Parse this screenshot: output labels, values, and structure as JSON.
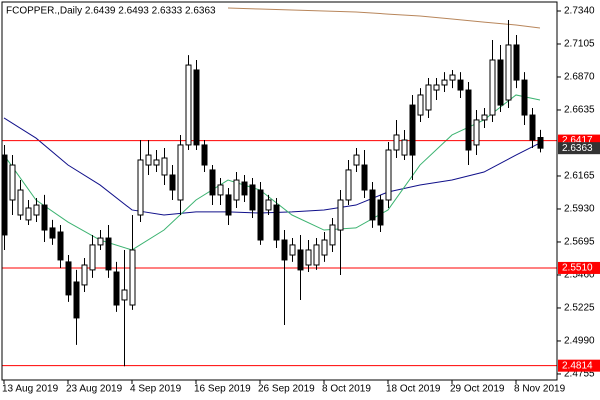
{
  "chart_data": {
    "type": "candlestick",
    "title": "FCOPPER.,Daily  2.6439 2.6493 2.6333 2.6363",
    "categories": [
      "13 Aug 2019",
      null,
      null,
      null,
      null,
      null,
      null,
      null,
      "23 Aug 2019",
      null,
      null,
      null,
      null,
      null,
      null,
      null,
      "4 Sep 2019",
      null,
      null,
      null,
      null,
      null,
      null,
      null,
      "16 Sep 2019",
      null,
      null,
      null,
      null,
      null,
      null,
      null,
      "26 Sep 2019",
      null,
      null,
      null,
      null,
      null,
      null,
      null,
      "8 Oct 2019",
      null,
      null,
      null,
      null,
      null,
      null,
      null,
      "18 Oct 2019",
      null,
      null,
      null,
      null,
      null,
      null,
      null,
      "29 Oct 2019",
      null,
      null,
      null,
      null,
      null,
      null,
      null,
      "8 Nov 2019",
      null,
      null,
      null
    ],
    "open": [
      2.6314,
      2.5994,
      2.5887,
      2.5852,
      2.5887,
      2.5958,
      2.5795,
      2.5766,
      2.5553,
      2.541,
      2.5389,
      2.5496,
      2.5674,
      2.5723,
      2.5481,
      2.5282,
      2.5246,
      2.5887,
      2.6243,
      2.6243,
      2.6172,
      2.6172,
      2.5994,
      2.6386,
      2.692,
      2.6386,
      2.6208,
      2.603,
      2.603,
      2.5994,
      2.6122,
      2.6101,
      2.6065,
      2.5923,
      2.5958,
      2.5709,
      2.5602,
      2.5638,
      2.5531,
      2.5531,
      2.5602,
      2.5674,
      2.578,
      2.5994,
      2.6243,
      2.6243,
      2.6065,
      2.5994,
      2.5994,
      2.635,
      2.6314,
      2.667,
      2.6599,
      2.6635,
      2.6777,
      2.6813,
      2.6848,
      2.6848,
      2.6777,
      2.6386,
      2.6564,
      2.6599,
      2.6991,
      2.6706,
      2.7098,
      2.6848,
      2.6599,
      2.6439
    ],
    "high": [
      2.6386,
      2.6314,
      2.6136,
      2.5994,
      2.6008,
      2.603,
      2.5852,
      2.5816,
      2.5602,
      2.5496,
      2.5581,
      2.5745,
      2.578,
      2.5816,
      2.5553,
      2.5638,
      2.5887,
      2.6421,
      2.6421,
      2.635,
      2.6364,
      2.6243,
      2.6457,
      2.7026,
      2.6991,
      2.6421,
      2.6243,
      2.6151,
      2.6079,
      2.6193,
      2.6172,
      2.6151,
      2.6122,
      2.603,
      2.6008,
      2.578,
      2.5723,
      2.5745,
      2.5709,
      2.5723,
      2.5766,
      2.5866,
      2.6065,
      2.6279,
      2.6364,
      2.635,
      2.6122,
      2.603,
      2.6407,
      2.6564,
      2.6492,
      2.6742,
      2.6791,
      2.6863,
      2.6863,
      2.6905,
      2.692,
      2.6905,
      2.6834,
      2.6635,
      2.6649,
      2.7133,
      2.7098,
      2.7276,
      2.7169,
      2.6905,
      2.6649,
      2.6493
    ],
    "low": [
      2.5638,
      2.5887,
      2.5852,
      2.5816,
      2.5837,
      2.5695,
      2.5674,
      2.551,
      2.5268,
      2.4962,
      2.5339,
      2.5439,
      2.5638,
      2.5439,
      2.5197,
      2.481,
      2.5211,
      2.5837,
      2.6172,
      2.6193,
      2.6101,
      2.5994,
      2.5887,
      2.635,
      2.635,
      2.6193,
      2.5958,
      2.5958,
      2.5816,
      2.5937,
      2.598,
      2.5866,
      2.5674,
      2.5887,
      2.5652,
      2.5104,
      2.5553,
      2.5282,
      2.5481,
      2.5496,
      2.5553,
      2.5624,
      2.546,
      2.5958,
      2.6193,
      2.6008,
      2.5795,
      2.5766,
      2.5937,
      2.6293,
      2.6279,
      2.6136,
      2.6549,
      2.6578,
      2.6706,
      2.6763,
      2.6791,
      2.672,
      2.6243,
      2.6314,
      2.6507,
      2.6549,
      2.6621,
      2.6649,
      2.6791,
      2.6528,
      2.6364,
      2.6333
    ],
    "close": [
      2.5745,
      2.6243,
      2.6065,
      2.5937,
      2.5958,
      2.578,
      2.5723,
      2.5567,
      2.5318,
      2.5154,
      2.5531,
      2.5674,
      2.5723,
      2.5496,
      2.5246,
      2.5353,
      2.5638,
      2.6279,
      2.6314,
      2.6279,
      2.6293,
      2.6065,
      2.6386,
      2.6955,
      2.6386,
      2.6243,
      2.603,
      2.6101,
      2.5887,
      2.6136,
      2.603,
      2.5923,
      2.5709,
      2.5994,
      2.5709,
      2.5567,
      2.5674,
      2.5496,
      2.5638,
      2.5674,
      2.5709,
      2.5816,
      2.5994,
      2.6208,
      2.6314,
      2.6065,
      2.5852,
      2.5816,
      2.635,
      2.6457,
      2.6421,
      2.6314,
      2.6742,
      2.6813,
      2.6813,
      2.6848,
      2.6884,
      2.6777,
      2.635,
      2.6564,
      2.6599,
      2.6991,
      2.667,
      2.7098,
      2.6848,
      2.6599,
      2.6421,
      2.6363
    ],
    "up_color": "#ffffff",
    "down_color": "#000000",
    "lines": [
      {
        "color": "#10108a",
        "x": [
          0,
          4,
          8,
          12,
          16,
          20,
          24,
          28,
          32,
          36,
          40,
          44,
          48,
          52,
          56,
          60,
          64,
          67
        ],
        "values": [
          2.6578,
          2.6435,
          2.6243,
          2.6101,
          2.5923,
          2.5887,
          2.5909,
          2.5909,
          2.5901,
          2.5909,
          2.5923,
          2.5958,
          2.6051,
          2.6101,
          2.6136,
          2.6193,
          2.6314,
          2.64
        ]
      },
      {
        "color": "#3cb371",
        "x": [
          0,
          4,
          8,
          12,
          16,
          20,
          24,
          28,
          32,
          36,
          40,
          44,
          48,
          52,
          56,
          60,
          64,
          67
        ],
        "values": [
          2.6314,
          2.5994,
          2.5837,
          2.5709,
          2.5638,
          2.578,
          2.5994,
          2.6136,
          2.6065,
          2.5887,
          2.578,
          2.5795,
          2.5923,
          2.6243,
          2.6457,
          2.6564,
          2.6742,
          2.6706
        ]
      },
      {
        "color": "#b8865b",
        "x": [
          28,
          32,
          36,
          40,
          44,
          48,
          52,
          56,
          60,
          64,
          67
        ],
        "values": [
          2.7361,
          2.7354,
          2.7347,
          2.734,
          2.7333,
          2.7318,
          2.7304,
          2.7283,
          2.7261,
          2.724,
          2.7219
        ]
      }
    ],
    "levels": [
      2.6417,
      {
        "value": 2.551,
        "label": "2.5510"
      },
      2.4814
    ],
    "level_color": "#ff0000",
    "bid": 2.6363,
    "bid_color": "#333333",
    "ylim": [
      2.4712,
      2.7404
    ],
    "yticks": [
      {
        "value": 2.734,
        "label": "2.7340"
      },
      2.7105,
      {
        "value": 2.687,
        "label": "2.6870"
      },
      2.6635,
      2.6165,
      {
        "value": 2.593,
        "label": "2.5930"
      },
      2.5695,
      {
        "value": 2.546,
        "label": "2.5460"
      },
      2.5225,
      {
        "value": 2.499,
        "label": "2.4990"
      },
      2.4755
    ]
  }
}
